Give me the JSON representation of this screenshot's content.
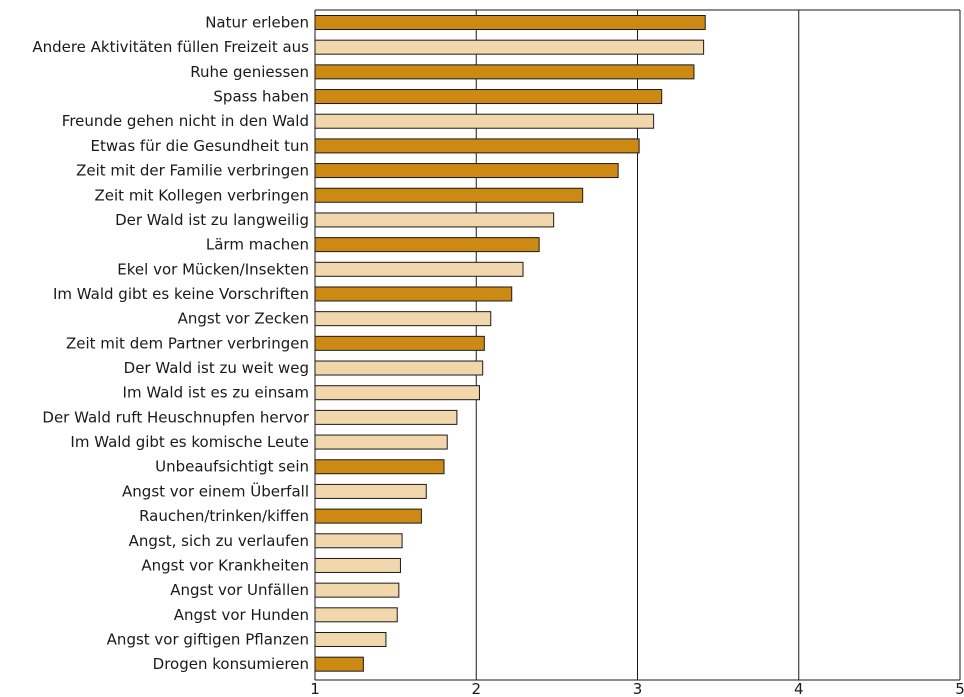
{
  "chart_data": {
    "type": "bar",
    "orientation": "horizontal",
    "xlim": [
      1,
      5
    ],
    "x_ticks": [
      "1",
      "2",
      "3",
      "4",
      "5"
    ],
    "grid": "vertical lines at integer ticks",
    "colors": {
      "dark": "#cc8a14",
      "light": "#f2d6ac",
      "edge": "#1a1a1a"
    },
    "categories": [
      "Natur erleben",
      "Andere Aktivitäten füllen Freizeit aus",
      "Ruhe geniessen",
      "Spass haben",
      "Freunde gehen nicht in den Wald",
      "Etwas für die Gesundheit tun",
      "Zeit mit der Familie verbringen",
      "Zeit mit Kollegen verbringen",
      "Der Wald ist zu langweilig",
      "Lärm machen",
      "Ekel vor Mücken/Insekten",
      "Im Wald gibt es keine Vorschriften",
      "Angst vor Zecken",
      "Zeit mit dem Partner verbringen",
      "Der Wald ist zu weit weg",
      "Im Wald ist es zu einsam",
      "Der Wald ruft Heuschnupfen hervor",
      "Im Wald gibt es komische Leute",
      "Unbeaufsichtigt sein",
      "Angst vor einem Überfall",
      "Rauchen/trinken/kiffen",
      "Angst, sich zu verlaufen",
      "Angst vor Krankheiten",
      "Angst vor Unfällen",
      "Angst vor Hunden",
      "Angst vor giftigen Pflanzen",
      "Drogen konsumieren"
    ],
    "values": [
      3.42,
      3.41,
      3.35,
      3.15,
      3.1,
      3.01,
      2.88,
      2.66,
      2.48,
      2.39,
      2.29,
      2.22,
      2.09,
      2.05,
      2.04,
      2.02,
      1.88,
      1.82,
      1.8,
      1.69,
      1.66,
      1.54,
      1.53,
      1.52,
      1.51,
      1.44,
      1.3
    ],
    "bar_color_group": [
      "dark",
      "light",
      "dark",
      "dark",
      "light",
      "dark",
      "dark",
      "dark",
      "light",
      "dark",
      "light",
      "dark",
      "light",
      "dark",
      "light",
      "light",
      "light",
      "light",
      "dark",
      "light",
      "dark",
      "light",
      "light",
      "light",
      "light",
      "light",
      "dark"
    ]
  }
}
